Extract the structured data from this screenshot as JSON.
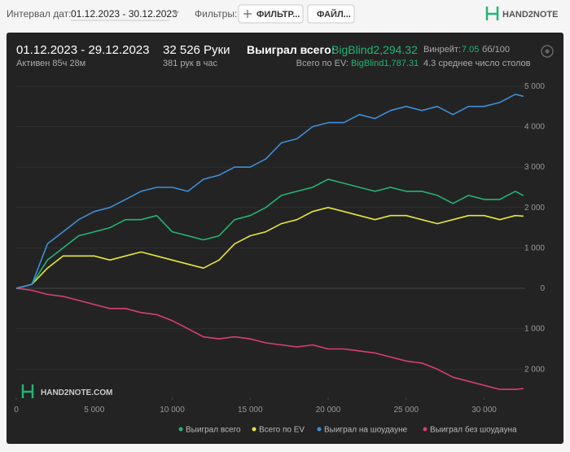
{
  "header": {
    "date_label": "Интервал дат:",
    "date_range": "01.12.2023 - 30.12.2023",
    "filters_label": "Фильтры:",
    "filter_button": "ФИЛЬТР...",
    "file_button": "ФАЙЛ...",
    "logo": "HAND2NOTE"
  },
  "summary": {
    "period": "01.12.2023 - 29.12.2023",
    "active": "Активен 85ч 28м",
    "hands": "32 526 Руки",
    "hands_per_hour": "381 рук в час",
    "won_total_label": "Выиграл всего:",
    "won_total": "BigBlind2,294.32",
    "ev_total_label": "Всего по EV:",
    "ev_total": "BigBlind1,787.31",
    "winrate_label": "Винрейт:",
    "winrate": "7.05",
    "winrate_unit": "бб/100",
    "tables": "4.3 среднее число столов"
  },
  "watermark": "HAND2NOTE.COM",
  "chart_data": {
    "type": "line",
    "x": [
      0,
      1000,
      2000,
      3000,
      4000,
      5000,
      6000,
      7000,
      8000,
      9000,
      10000,
      11000,
      12000,
      13000,
      14000,
      15000,
      16000,
      17000,
      18000,
      19000,
      20000,
      21000,
      22000,
      23000,
      24000,
      25000,
      26000,
      27000,
      28000,
      29000,
      30000,
      31000,
      32000,
      32526
    ],
    "series": [
      {
        "name": "Выиграл всего",
        "color": "#22b573",
        "values": [
          0,
          100,
          700,
          1000,
          1300,
          1400,
          1500,
          1700,
          1700,
          1800,
          1400,
          1300,
          1200,
          1300,
          1700,
          1800,
          2000,
          2300,
          2400,
          2500,
          2700,
          2600,
          2500,
          2400,
          2500,
          2400,
          2400,
          2300,
          2100,
          2300,
          2200,
          2200,
          2400,
          2294
        ]
      },
      {
        "name": "Всего по EV",
        "color": "#e6e63c",
        "values": [
          0,
          100,
          500,
          800,
          800,
          800,
          700,
          800,
          900,
          800,
          700,
          600,
          500,
          700,
          1100,
          1300,
          1400,
          1600,
          1700,
          1900,
          2000,
          1900,
          1800,
          1700,
          1800,
          1800,
          1700,
          1600,
          1700,
          1800,
          1800,
          1700,
          1800,
          1787
        ]
      },
      {
        "name": "Выиграл на шоудауне",
        "color": "#3e8fd9",
        "values": [
          0,
          100,
          1100,
          1400,
          1700,
          1900,
          2000,
          2200,
          2400,
          2500,
          2500,
          2400,
          2700,
          2800,
          3000,
          3000,
          3200,
          3600,
          3700,
          4000,
          4100,
          4100,
          4300,
          4200,
          4400,
          4500,
          4400,
          4500,
          4300,
          4500,
          4500,
          4600,
          4800,
          4750
        ]
      },
      {
        "name": "Выиграл без шоудауна",
        "color": "#d9406e",
        "values": [
          0,
          -50,
          -150,
          -200,
          -300,
          -400,
          -500,
          -500,
          -600,
          -650,
          -800,
          -1000,
          -1200,
          -1250,
          -1200,
          -1250,
          -1350,
          -1400,
          -1450,
          -1400,
          -1500,
          -1500,
          -1550,
          -1600,
          -1700,
          -1800,
          -1850,
          -2000,
          -2200,
          -2300,
          -2400,
          -2500,
          -2500,
          -2480
        ]
      }
    ],
    "xlim": [
      0,
      33000
    ],
    "xticks": [
      0,
      {
        "value": 5000,
        "label": "5 000"
      },
      {
        "value": 10000,
        "label": "10 000"
      },
      {
        "value": 15000,
        "label": "15 000"
      },
      {
        "value": 20000,
        "label": "20 000"
      },
      {
        "value": 25000,
        "label": "25 000"
      },
      {
        "value": 30000,
        "label": "30 000"
      }
    ],
    "ylim": [
      -2700,
      5200
    ],
    "yticks": [
      {
        "value": -2000,
        "label": "2 000"
      },
      {
        "value": -1000,
        "label": "1 000"
      },
      0,
      {
        "value": 1000,
        "label": "1 000"
      },
      {
        "value": 2000,
        "label": "2 000"
      },
      {
        "value": 3000,
        "label": "3 000"
      },
      {
        "value": 4000,
        "label": "4 000"
      },
      {
        "value": 5000,
        "label": "5 000"
      }
    ],
    "grid": true
  }
}
